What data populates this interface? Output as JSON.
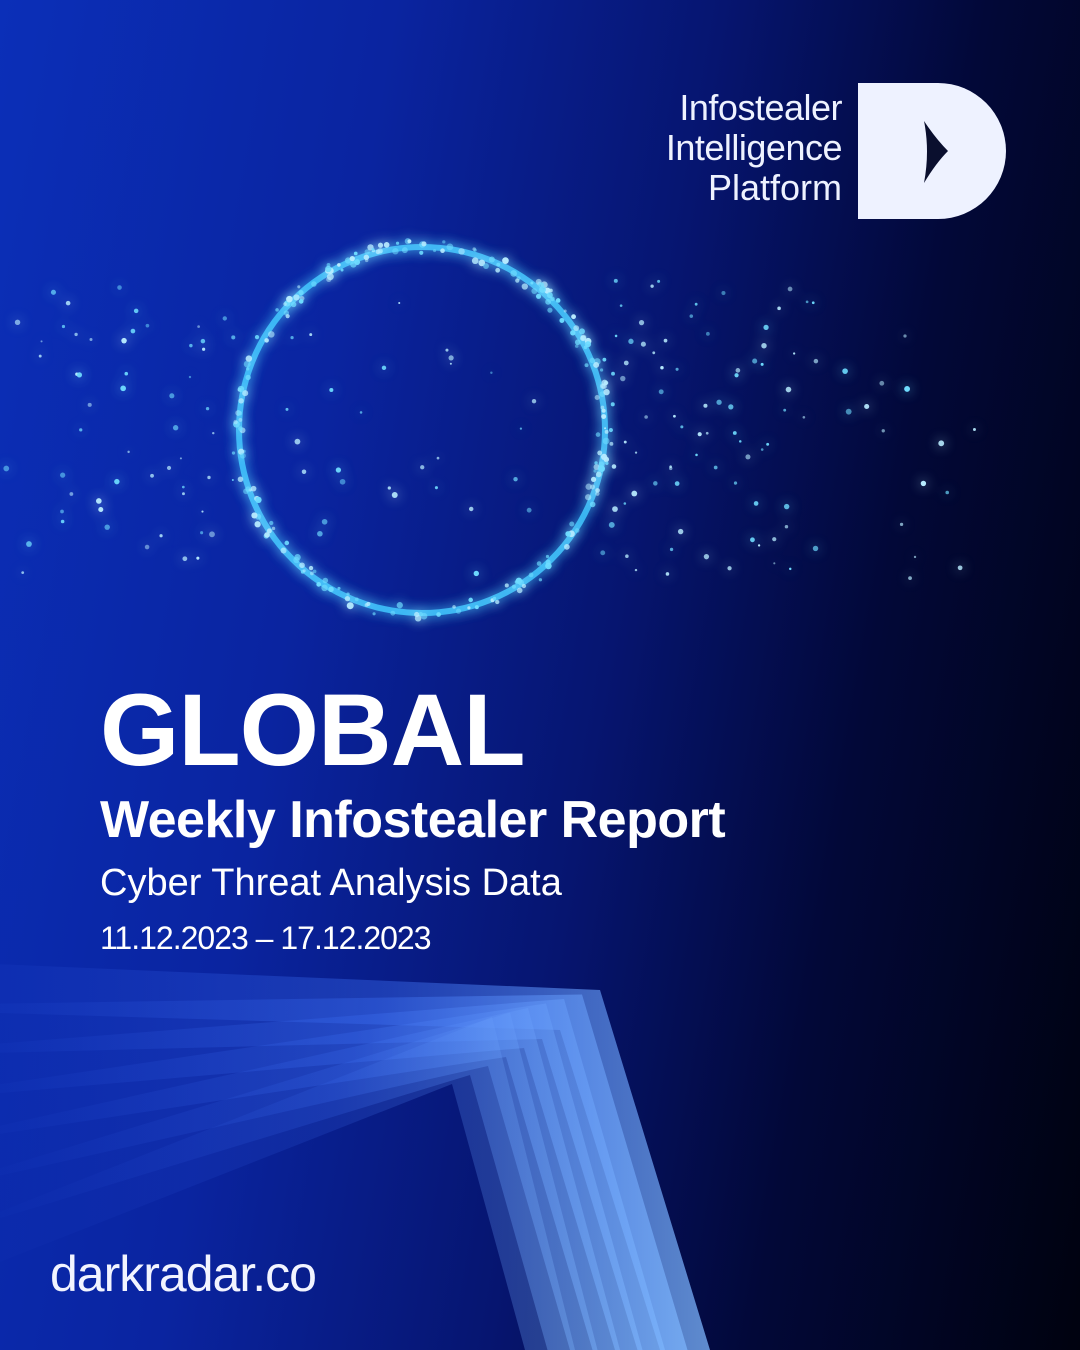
{
  "brand": {
    "line1": "Infostealer",
    "line2": "Intelligence",
    "line3": "Platform",
    "logo_icon": "d-play-logo-icon"
  },
  "hero": {
    "title": "GLOBAL",
    "subtitle": "Weekly Infostealer Report",
    "tagline": "Cyber Threat Analysis Data",
    "date_range": "11.12.2023 – 17.12.2023"
  },
  "footer": {
    "website": "darkradar.co"
  },
  "colors": {
    "accent_blue": "#0b2fb8",
    "glow_cyan": "#3fc6ff",
    "logo_white": "#eef2ff"
  }
}
